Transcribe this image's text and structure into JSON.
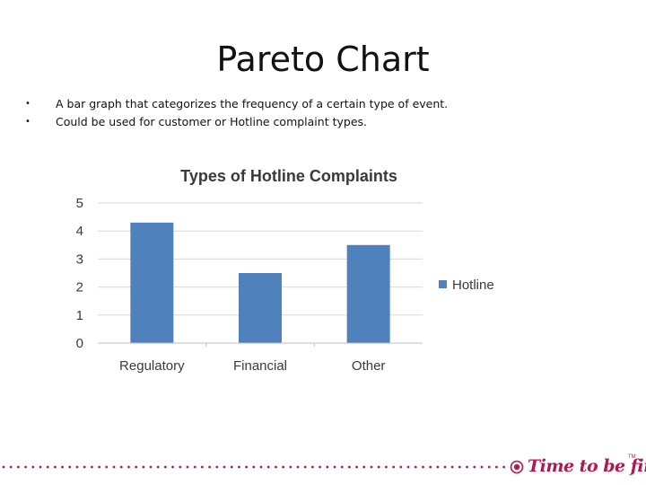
{
  "slide": {
    "title": "Pareto Chart",
    "bullets": [
      "A bar graph that categorizes the frequency of a certain type of event.",
      "Could be used for customer or Hotline complaint types."
    ],
    "bullet_symbol": "•"
  },
  "brand": {
    "text": "Time to be first.",
    "tm": "TM",
    "color": "#b0184f",
    "icon": "target-circle-icon"
  },
  "chart_data": {
    "type": "bar",
    "title": "Types of Hotline Complaints",
    "categories": [
      "Regulatory",
      "Financial",
      "Other"
    ],
    "series": [
      {
        "name": "Hotline",
        "values": [
          4.3,
          2.5,
          3.5
        ],
        "color": "#4f81bd"
      }
    ],
    "ylim": [
      0,
      5
    ],
    "yticks": [
      0,
      1,
      2,
      3,
      4,
      5
    ],
    "grid": true,
    "legend": "right",
    "xlabel": "",
    "ylabel": ""
  }
}
